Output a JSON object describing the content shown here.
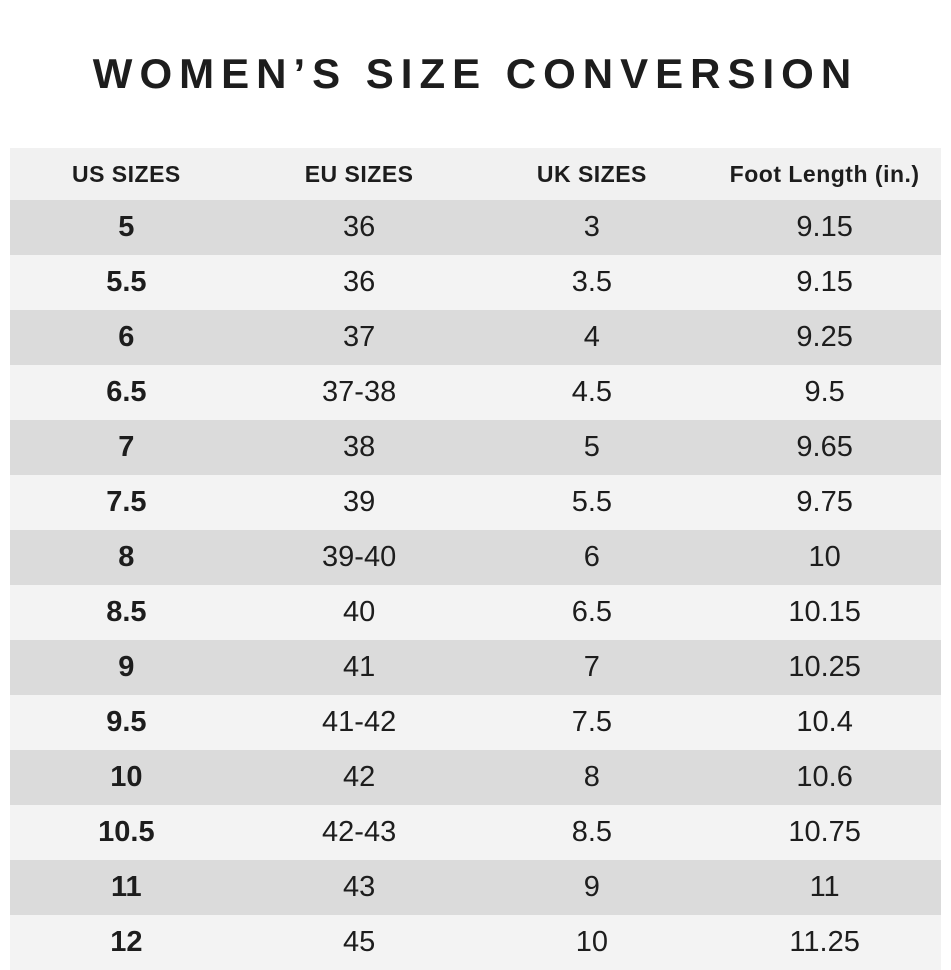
{
  "chart_data": {
    "type": "table",
    "title": "WOMEN’S SIZE CONVERSION",
    "columns": [
      "US SIZES",
      "EU SIZES",
      "UK SIZES",
      "Foot Length (in.)"
    ],
    "rows": [
      [
        "5",
        "36",
        "3",
        "9.15"
      ],
      [
        "5.5",
        "36",
        "3.5",
        "9.15"
      ],
      [
        "6",
        "37",
        "4",
        "9.25"
      ],
      [
        "6.5",
        "37-38",
        "4.5",
        "9.5"
      ],
      [
        "7",
        "38",
        "5",
        "9.65"
      ],
      [
        "7.5",
        "39",
        "5.5",
        "9.75"
      ],
      [
        "8",
        "39-40",
        "6",
        "10"
      ],
      [
        "8.5",
        "40",
        "6.5",
        "10.15"
      ],
      [
        "9",
        "41",
        "7",
        "10.25"
      ],
      [
        "9.5",
        "41-42",
        "7.5",
        "10.4"
      ],
      [
        "10",
        "42",
        "8",
        "10.6"
      ],
      [
        "10.5",
        "42-43",
        "8.5",
        "10.75"
      ],
      [
        "11",
        "43",
        "9",
        "11"
      ],
      [
        "12",
        "45",
        "10",
        "11.25"
      ]
    ],
    "layout": {
      "grid": false,
      "zebra_striping": true,
      "first_column_bold": true
    }
  },
  "colors": {
    "row_dark": "#dbdbdb",
    "row_light": "#f3f3f3",
    "header_bg": "#f1f1f1",
    "text": "#1d1d1d",
    "background": "#ffffff"
  }
}
